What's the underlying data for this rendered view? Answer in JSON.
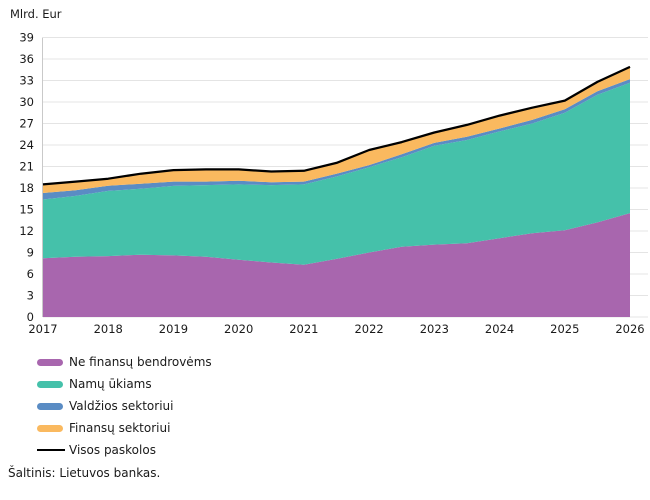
{
  "chart_data": {
    "type": "area",
    "stacked": true,
    "unit_label": "Mlrd. Eur",
    "title": "",
    "xlabel": "",
    "ylabel": "Mlrd. Eur",
    "ylim": [
      0,
      39
    ],
    "y_tick_step": 3,
    "x_ticks": [
      2017,
      2018,
      2019,
      2020,
      2021,
      2022,
      2023,
      2024,
      2025,
      2026
    ],
    "grid": true,
    "legend_position": "bottom-left",
    "x": [
      2017,
      2017.5,
      2018,
      2018.5,
      2019,
      2019.5,
      2020,
      2020.5,
      2021,
      2021.5,
      2022,
      2022.5,
      2023,
      2023.5,
      2024,
      2024.5,
      2025,
      2025.5,
      2026
    ],
    "series": [
      {
        "key": "ne-finansu-bendrovems",
        "name": "Ne finansų bendrovėms",
        "kind": "area",
        "color": "#a866ae",
        "values": [
          8.2,
          8.4,
          8.5,
          8.7,
          8.6,
          8.4,
          8.0,
          7.6,
          7.3,
          8.1,
          9.0,
          9.8,
          10.1,
          10.3,
          11.0,
          11.7,
          12.1,
          13.2,
          14.5
        ]
      },
      {
        "key": "namu-ukiams",
        "name": "Namų ūkiams",
        "kind": "area",
        "color": "#45c1aa",
        "values": [
          8.2,
          8.5,
          9.1,
          9.2,
          9.7,
          10.0,
          10.5,
          10.8,
          11.2,
          11.5,
          11.9,
          12.5,
          13.8,
          14.4,
          14.9,
          15.3,
          16.4,
          17.8,
          18.2
        ]
      },
      {
        "key": "valdzios-sektoriui",
        "name": "Valdžios sektoriui",
        "kind": "area",
        "color": "#5a8cc4",
        "values": [
          0.9,
          0.8,
          0.7,
          0.7,
          0.6,
          0.5,
          0.5,
          0.4,
          0.4,
          0.4,
          0.3,
          0.4,
          0.4,
          0.45,
          0.4,
          0.5,
          0.5,
          0.5,
          0.5
        ]
      },
      {
        "key": "finansu-sektoriui",
        "name": "Finansų sektoriui",
        "kind": "area",
        "color": "#fab95f",
        "values": [
          1.2,
          1.2,
          1.0,
          1.4,
          1.6,
          1.7,
          1.6,
          1.5,
          1.5,
          1.5,
          2.1,
          1.7,
          1.45,
          1.65,
          1.8,
          1.7,
          1.2,
          1.3,
          1.7
        ]
      },
      {
        "key": "visos-paskolos",
        "name": "Visos paskolos",
        "kind": "line",
        "color": "#000000",
        "values": [
          18.5,
          18.9,
          19.3,
          20.0,
          20.5,
          20.6,
          20.6,
          20.3,
          20.4,
          21.5,
          23.3,
          24.4,
          25.75,
          26.8,
          28.1,
          29.2,
          30.2,
          32.8,
          34.9
        ]
      }
    ],
    "colors": {
      "grid": "#e4e4e4",
      "axis": "#c9c9c9",
      "text": "#1a1a1a"
    }
  },
  "source": {
    "text": "Šaltinis: Lietuvos bankas."
  }
}
